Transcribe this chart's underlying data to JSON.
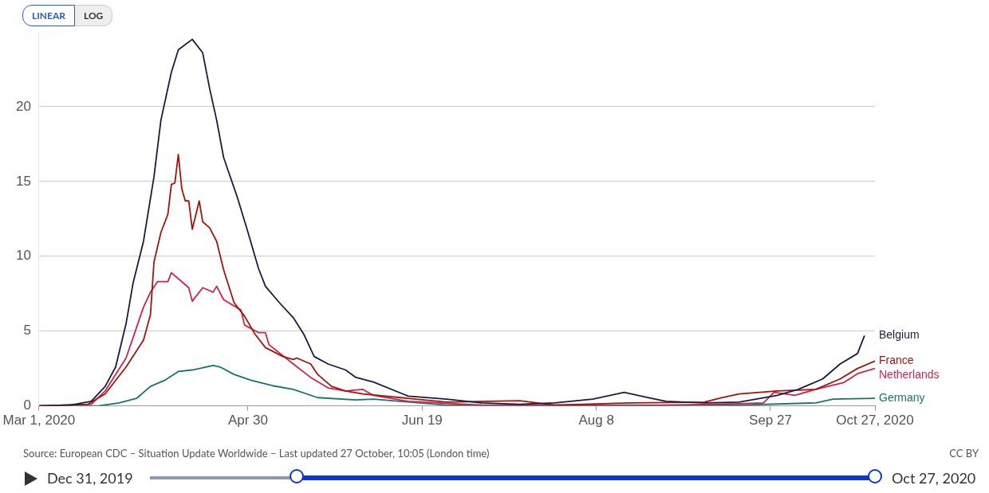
{
  "chart_data": {
    "type": "line",
    "xlim": [
      "2020-03-01",
      "2020-10-27"
    ],
    "xticks": [
      {
        "value": "2020-03-01",
        "label": "Mar 1, 2020"
      },
      {
        "value": "2020-04-30",
        "label": "Apr 30"
      },
      {
        "value": "2020-06-19",
        "label": "Jun 19"
      },
      {
        "value": "2020-08-08",
        "label": "Aug 8"
      },
      {
        "value": "2020-09-27",
        "label": "Sep 27"
      },
      {
        "value": "2020-10-27",
        "label": "Oct 27, 2020"
      }
    ],
    "ylim": [
      0,
      25
    ],
    "yticks": [
      0,
      5,
      10,
      15,
      20
    ],
    "grid": "y",
    "legend": false,
    "marker": "none",
    "line_style": "solid",
    "annotations": [
      "LINEAR",
      "LOG",
      "Source: European CDC – Situation Update Worldwide – Last updated 27 October, 10:05 (London time)",
      "CC BY",
      "Dec 31, 2019",
      "Oct 27, 2020"
    ],
    "series": [
      {
        "name": "Belgium",
        "color": "#1a1b40",
        "x": [
          "2020-03-01",
          "2020-03-10",
          "2020-03-16",
          "2020-03-20",
          "2020-03-23",
          "2020-03-26",
          "2020-03-28",
          "2020-03-31",
          "2020-04-03",
          "2020-04-05",
          "2020-04-08",
          "2020-04-10",
          "2020-04-14",
          "2020-04-17",
          "2020-04-19",
          "2020-04-21",
          "2020-04-23",
          "2020-04-27",
          "2020-04-30",
          "2020-05-03",
          "2020-05-05",
          "2020-05-09",
          "2020-05-13",
          "2020-05-16",
          "2020-05-19",
          "2020-05-23",
          "2020-05-28",
          "2020-05-31",
          "2020-06-05",
          "2020-06-15",
          "2020-06-26",
          "2020-07-06",
          "2020-07-17",
          "2020-07-27",
          "2020-08-07",
          "2020-08-16",
          "2020-08-23",
          "2020-08-28",
          "2020-09-08",
          "2020-09-18",
          "2020-09-29",
          "2020-10-05",
          "2020-10-12",
          "2020-10-17",
          "2020-10-22",
          "2020-10-24"
        ],
        "values": [
          0,
          0.05,
          0.3,
          1.3,
          2.6,
          5.5,
          8.2,
          11,
          15.3,
          19.1,
          22.3,
          23.8,
          24.5,
          23.6,
          21.2,
          19.1,
          16.6,
          13.9,
          11.6,
          9.2,
          8.0,
          6.9,
          5.9,
          4.8,
          3.3,
          2.8,
          2.4,
          1.9,
          1.6,
          0.65,
          0.45,
          0.2,
          0.1,
          0.2,
          0.45,
          0.9,
          0.55,
          0.3,
          0.2,
          0.25,
          0.7,
          1.1,
          1.8,
          2.8,
          3.5,
          4.7
        ]
      },
      {
        "name": "France",
        "color": "#a2150a",
        "x": [
          "2020-03-01",
          "2020-03-15",
          "2020-03-20",
          "2020-03-26",
          "2020-03-31",
          "2020-04-02",
          "2020-04-03",
          "2020-04-05",
          "2020-04-07",
          "2020-04-08",
          "2020-04-09",
          "2020-04-10",
          "2020-04-11",
          "2020-04-12",
          "2020-04-13",
          "2020-04-14",
          "2020-04-16",
          "2020-04-17",
          "2020-04-19",
          "2020-04-21",
          "2020-04-23",
          "2020-04-26",
          "2020-04-29",
          "2020-05-02",
          "2020-05-05",
          "2020-05-10",
          "2020-05-13",
          "2020-05-14",
          "2020-05-18",
          "2020-05-20",
          "2020-05-24",
          "2020-05-28",
          "2020-06-02",
          "2020-06-26",
          "2020-07-17",
          "2020-07-27",
          "2020-08-18",
          "2020-09-08",
          "2020-09-13",
          "2020-09-18",
          "2020-09-29",
          "2020-10-10",
          "2020-10-17",
          "2020-10-22",
          "2020-10-27"
        ],
        "values": [
          0,
          0.1,
          0.8,
          2.6,
          4.4,
          6.1,
          9.6,
          11.6,
          12.8,
          14.8,
          14.9,
          16.8,
          14.5,
          13.7,
          13.7,
          11.8,
          13.7,
          12.3,
          11.9,
          11,
          9.1,
          6.9,
          6.0,
          4.8,
          3.9,
          3.3,
          3.1,
          3.2,
          2.8,
          2.1,
          1.3,
          1.0,
          0.8,
          0.25,
          0.35,
          0.05,
          0.2,
          0.25,
          0.55,
          0.8,
          1.0,
          1.1,
          1.8,
          2.5,
          3.0
        ]
      },
      {
        "name": "Netherlands",
        "color": "#d3214f",
        "x": [
          "2020-03-01",
          "2020-03-16",
          "2020-03-20",
          "2020-03-26",
          "2020-03-31",
          "2020-04-02",
          "2020-04-04",
          "2020-04-07",
          "2020-04-08",
          "2020-04-11",
          "2020-04-13",
          "2020-04-14",
          "2020-04-17",
          "2020-04-20",
          "2020-04-21",
          "2020-04-23",
          "2020-04-28",
          "2020-04-29",
          "2020-05-03",
          "2020-05-05",
          "2020-05-06",
          "2020-05-13",
          "2020-05-18",
          "2020-05-23",
          "2020-05-28",
          "2020-06-02",
          "2020-06-05",
          "2020-06-15",
          "2020-07-06",
          "2020-08-18",
          "2020-09-18",
          "2020-09-25",
          "2020-09-28",
          "2020-10-04",
          "2020-10-10",
          "2020-10-18",
          "2020-10-22",
          "2020-10-27"
        ],
        "values": [
          0,
          0.1,
          1.0,
          3.2,
          6.6,
          7.6,
          8.3,
          8.3,
          8.9,
          8.3,
          7.9,
          7.0,
          7.9,
          7.6,
          8.0,
          7.1,
          6.4,
          5.4,
          4.9,
          4.9,
          4.1,
          2.8,
          1.9,
          1.2,
          1.0,
          1.1,
          0.7,
          0.3,
          0.05,
          0,
          0.15,
          0.2,
          0.9,
          0.7,
          1.1,
          1.55,
          2.15,
          2.5
        ]
      },
      {
        "name": "Germany",
        "color": "#16756b",
        "x": [
          "2020-03-01",
          "2020-03-18",
          "2020-03-24",
          "2020-03-29",
          "2020-04-02",
          "2020-04-06",
          "2020-04-10",
          "2020-04-14",
          "2020-04-20",
          "2020-04-22",
          "2020-04-26",
          "2020-05-01",
          "2020-05-07",
          "2020-05-13",
          "2020-05-20",
          "2020-05-31",
          "2020-06-05",
          "2020-06-26",
          "2020-09-18",
          "2020-10-10",
          "2020-10-15",
          "2020-10-27"
        ],
        "values": [
          0,
          0,
          0.2,
          0.5,
          1.3,
          1.7,
          2.3,
          2.4,
          2.7,
          2.6,
          2.1,
          1.7,
          1.35,
          1.1,
          0.55,
          0.4,
          0.45,
          0.05,
          0.05,
          0.2,
          0.45,
          0.5
        ]
      }
    ]
  }
}
